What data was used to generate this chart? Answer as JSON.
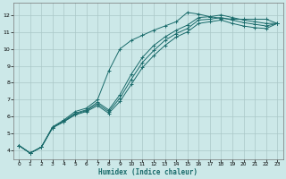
{
  "xlabel": "Humidex (Indice chaleur)",
  "ylabel": "",
  "bg_color": "#cce8e8",
  "line_color": "#1a6b6b",
  "grid_color": "#aac8c8",
  "xlim": [
    -0.5,
    23.5
  ],
  "ylim": [
    3.5,
    12.7
  ],
  "xticks": [
    0,
    1,
    2,
    3,
    4,
    5,
    6,
    7,
    8,
    9,
    10,
    11,
    12,
    13,
    14,
    15,
    16,
    17,
    18,
    19,
    20,
    21,
    22,
    23
  ],
  "yticks": [
    4,
    5,
    6,
    7,
    8,
    9,
    10,
    11,
    12
  ],
  "lines": [
    {
      "x": [
        0,
        1,
        2,
        3,
        4,
        5,
        6,
        7,
        8,
        9,
        10,
        11,
        12,
        13,
        14,
        15,
        16,
        17,
        18,
        19,
        20,
        21,
        22,
        23
      ],
      "y": [
        4.3,
        3.85,
        4.2,
        5.4,
        5.8,
        6.3,
        6.5,
        7.0,
        8.7,
        10.0,
        10.5,
        10.8,
        11.1,
        11.35,
        11.6,
        12.15,
        12.05,
        11.9,
        11.8,
        11.75,
        11.75,
        11.75,
        11.75,
        11.5
      ],
      "ls": "-"
    },
    {
      "x": [
        0,
        1,
        2,
        3,
        4,
        5,
        6,
        7,
        8,
        9,
        10,
        11,
        12,
        13,
        14,
        15,
        16,
        17,
        18,
        19,
        20,
        21,
        22,
        23
      ],
      "y": [
        4.3,
        3.85,
        4.2,
        5.35,
        5.75,
        6.2,
        6.4,
        6.85,
        6.4,
        7.3,
        8.5,
        9.5,
        10.2,
        10.7,
        11.1,
        11.4,
        11.85,
        11.9,
        12.0,
        11.85,
        11.7,
        11.6,
        11.5,
        11.5
      ],
      "ls": "-"
    },
    {
      "x": [
        0,
        1,
        2,
        3,
        4,
        5,
        6,
        7,
        8,
        9,
        10,
        11,
        12,
        13,
        14,
        15,
        16,
        17,
        18,
        19,
        20,
        21,
        22,
        23
      ],
      "y": [
        4.3,
        3.85,
        4.2,
        5.35,
        5.7,
        6.15,
        6.35,
        6.75,
        6.3,
        7.1,
        8.2,
        9.2,
        9.9,
        10.5,
        10.9,
        11.2,
        11.7,
        11.75,
        11.85,
        11.7,
        11.55,
        11.45,
        11.35,
        11.5
      ],
      "ls": "-"
    },
    {
      "x": [
        0,
        1,
        2,
        3,
        4,
        5,
        6,
        7,
        8,
        9,
        10,
        11,
        12,
        13,
        14,
        15,
        16,
        17,
        18,
        19,
        20,
        21,
        22,
        23
      ],
      "y": [
        4.3,
        3.85,
        4.2,
        5.35,
        5.7,
        6.1,
        6.3,
        6.65,
        6.2,
        6.9,
        7.9,
        8.9,
        9.6,
        10.2,
        10.7,
        11.0,
        11.5,
        11.6,
        11.7,
        11.5,
        11.35,
        11.25,
        11.2,
        11.5
      ],
      "ls": "-"
    }
  ]
}
